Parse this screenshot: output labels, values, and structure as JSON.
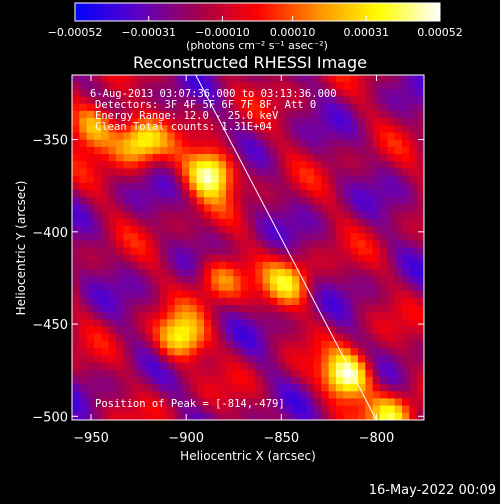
{
  "chart_data": {
    "type": "heatmap",
    "title": "Reconstructed RHESSI Image",
    "xlabel": "Heliocentric X (arcsec)",
    "ylabel": "Heliocentric Y (arcsec)",
    "xlim": [
      -960,
      -775
    ],
    "ylim": [
      -502,
      -315
    ],
    "x_ticks": [
      -950,
      -900,
      -850,
      -800
    ],
    "y_ticks": [
      -350,
      -400,
      -450,
      -500
    ],
    "x_tick_labels": [
      "−950",
      "−900",
      "−850",
      "−800"
    ],
    "y_tick_labels": [
      "−350",
      "−400",
      "−450",
      "−500"
    ],
    "colorbar": {
      "min": -0.00052,
      "max": 0.00052,
      "ticks": [
        -0.00052,
        -0.00031,
        -0.0001,
        0.0001,
        0.00031,
        0.00052
      ],
      "tick_labels": [
        "−0.00052",
        "−0.00031",
        "−0.00010",
        "0.00010",
        "0.00031",
        "0.00052"
      ],
      "unit_label": "(photons cm⁻² s⁻¹ asec⁻²)",
      "colors": [
        "#0000ff",
        "#5a00c8",
        "#a00050",
        "#ff0000",
        "#ff9000",
        "#ffff00",
        "#ffffff"
      ]
    },
    "annotations": [
      "6-Aug-2013 03:07:36.000 to 03:13:36.000",
      "Detectors: 3F 4F 5F 6F 7F 8F, Att 0",
      "Energy Range: 12.0 - 25.0 keV",
      "Clean    Total counts: 1.31E+04"
    ],
    "peak_label": "Position of Peak = [-814,-479]",
    "peak_position": [
      -814,
      -479
    ],
    "sources": [
      {
        "x": -887,
        "y": -368,
        "value": 0.0005
      },
      {
        "x": -815,
        "y": -478,
        "value": 0.00052
      },
      {
        "x": -925,
        "y": -352,
        "value": 0.00036
      },
      {
        "x": -903,
        "y": -458,
        "value": 0.00035
      },
      {
        "x": -948,
        "y": -342,
        "value": 0.00033
      },
      {
        "x": -846,
        "y": -428,
        "value": 0.00022
      },
      {
        "x": -882,
        "y": -425,
        "value": 0.0002
      },
      {
        "x": -792,
        "y": -500,
        "value": 0.0003
      }
    ],
    "limb_line": [
      [
        -895,
        -315
      ],
      [
        -800,
        -502
      ]
    ]
  },
  "footer": {
    "timestamp": "16-May-2022 00:09"
  }
}
